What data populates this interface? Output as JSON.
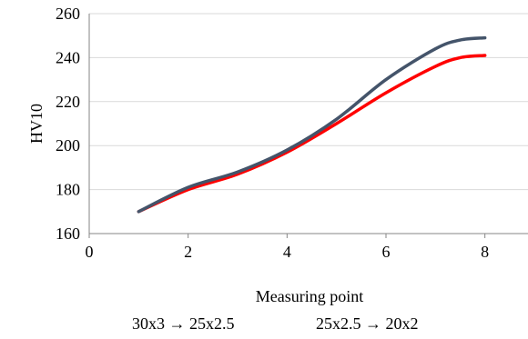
{
  "chart_data": {
    "type": "line",
    "xlabel": "Measuring point",
    "ylabel": "HV10",
    "xlim": [
      0,
      9
    ],
    "ylim": [
      160,
      260
    ],
    "xticks": [
      0,
      2,
      4,
      6,
      8
    ],
    "yticks": [
      160,
      180,
      200,
      220,
      240,
      260
    ],
    "grid": "horizontal",
    "legend_position": "bottom",
    "series": [
      {
        "name": "30x3 → 25x2.5",
        "color": "#44546a",
        "x": [
          1,
          2,
          3,
          4,
          5,
          6,
          7,
          7.5,
          8
        ],
        "y": [
          170,
          181,
          188,
          198,
          212,
          230,
          244,
          248,
          249
        ]
      },
      {
        "name": "25x2.5 → 20x2",
        "color": "#ff0000",
        "x": [
          1,
          2,
          3,
          4,
          5,
          6,
          7,
          7.5,
          8
        ],
        "y": [
          170,
          180,
          187,
          197,
          210,
          224,
          236,
          240,
          241
        ]
      }
    ]
  }
}
